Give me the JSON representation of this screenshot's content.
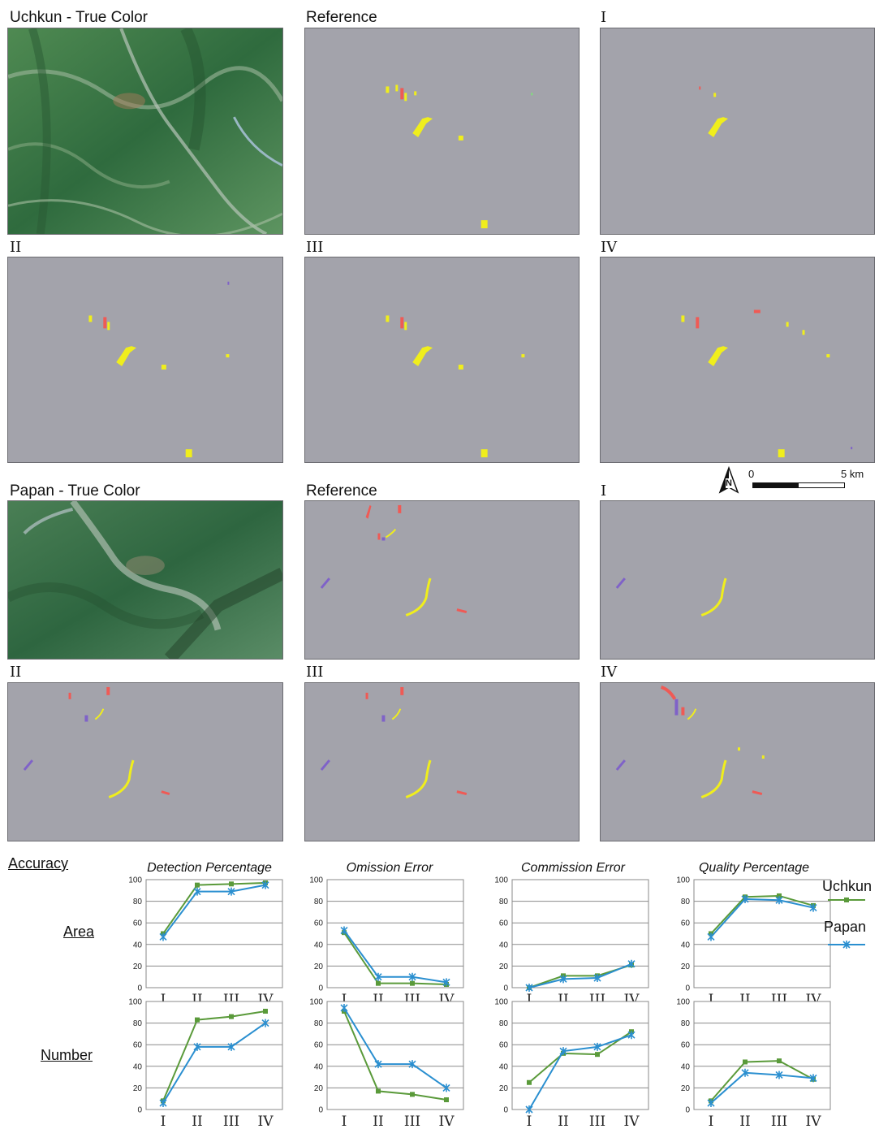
{
  "uchkun": {
    "true_color_label": "Uchkun - True Color",
    "reference_label": "Reference",
    "labels": [
      "I",
      "II",
      "III",
      "IV"
    ]
  },
  "papan": {
    "true_color_label": "Papan - True Color",
    "reference_label": "Reference",
    "labels": [
      "I",
      "II",
      "III",
      "IV"
    ]
  },
  "scalebar": {
    "zero": "0",
    "max": "5 km",
    "north": "N"
  },
  "accuracy_label": "Accuracy",
  "row_labels": [
    "Area",
    "Number"
  ],
  "colors": {
    "uchkun": "#5a9a3a",
    "papan": "#2a8fd0",
    "panel_bg": "#a3a3ab",
    "yellow": "#f0ee1c",
    "red": "#ef5a55",
    "purple": "#7f62c8"
  },
  "legend": [
    {
      "name": "Uchkun",
      "color": "#5a9a3a",
      "marker": "square"
    },
    {
      "name": "Papan",
      "color": "#2a8fd0",
      "marker": "star"
    }
  ],
  "chart_data": [
    {
      "type": "line",
      "title": "Detection Percentage",
      "row": "Area",
      "categories": [
        "I",
        "II",
        "III",
        "IV"
      ],
      "ylim": [
        0,
        100
      ],
      "yticks": [
        0,
        20,
        40,
        60,
        80,
        100
      ],
      "series": [
        {
          "name": "Uchkun",
          "values": [
            50,
            95,
            96,
            97
          ]
        },
        {
          "name": "Papan",
          "values": [
            47,
            89,
            89,
            95
          ]
        }
      ]
    },
    {
      "type": "line",
      "title": "Omission Error",
      "row": "Area",
      "categories": [
        "I",
        "II",
        "III",
        "IV"
      ],
      "ylim": [
        0,
        100
      ],
      "yticks": [
        0,
        20,
        40,
        60,
        80,
        100
      ],
      "series": [
        {
          "name": "Uchkun",
          "values": [
            51,
            4,
            4,
            3
          ]
        },
        {
          "name": "Papan",
          "values": [
            53,
            10,
            10,
            5
          ]
        }
      ]
    },
    {
      "type": "line",
      "title": "Commission Error",
      "row": "Area",
      "categories": [
        "I",
        "II",
        "III",
        "IV"
      ],
      "ylim": [
        0,
        100
      ],
      "yticks": [
        0,
        20,
        40,
        60,
        80,
        100
      ],
      "series": [
        {
          "name": "Uchkun",
          "values": [
            0,
            11,
            11,
            21
          ]
        },
        {
          "name": "Papan",
          "values": [
            0,
            8,
            9,
            22
          ]
        }
      ]
    },
    {
      "type": "line",
      "title": "Quality Percentage",
      "row": "Area",
      "categories": [
        "I",
        "II",
        "III",
        "IV"
      ],
      "ylim": [
        0,
        100
      ],
      "yticks": [
        0,
        20,
        40,
        60,
        80,
        100
      ],
      "series": [
        {
          "name": "Uchkun",
          "values": [
            50,
            84,
            85,
            76
          ]
        },
        {
          "name": "Papan",
          "values": [
            47,
            82,
            81,
            74
          ]
        }
      ]
    },
    {
      "type": "line",
      "title": "",
      "row": "Number",
      "categories": [
        "I",
        "II",
        "III",
        "IV"
      ],
      "ylim": [
        0,
        100
      ],
      "yticks": [
        0,
        20,
        40,
        60,
        80,
        100
      ],
      "series": [
        {
          "name": "Uchkun",
          "values": [
            8,
            83,
            86,
            91
          ]
        },
        {
          "name": "Papan",
          "values": [
            6,
            58,
            58,
            80
          ]
        }
      ]
    },
    {
      "type": "line",
      "title": "",
      "row": "Number",
      "categories": [
        "I",
        "II",
        "III",
        "IV"
      ],
      "ylim": [
        0,
        100
      ],
      "yticks": [
        0,
        20,
        40,
        60,
        80,
        100
      ],
      "series": [
        {
          "name": "Uchkun",
          "values": [
            91,
            17,
            14,
            9
          ]
        },
        {
          "name": "Papan",
          "values": [
            94,
            42,
            42,
            20
          ]
        }
      ]
    },
    {
      "type": "line",
      "title": "",
      "row": "Number",
      "categories": [
        "I",
        "II",
        "III",
        "IV"
      ],
      "ylim": [
        0,
        100
      ],
      "yticks": [
        0,
        20,
        40,
        60,
        80,
        100
      ],
      "series": [
        {
          "name": "Uchkun",
          "values": [
            25,
            52,
            51,
            72
          ]
        },
        {
          "name": "Papan",
          "values": [
            0,
            54,
            58,
            69
          ]
        }
      ]
    },
    {
      "type": "line",
      "title": "",
      "row": "Number",
      "categories": [
        "I",
        "II",
        "III",
        "IV"
      ],
      "ylim": [
        0,
        100
      ],
      "yticks": [
        0,
        20,
        40,
        60,
        80,
        100
      ],
      "series": [
        {
          "name": "Uchkun",
          "values": [
            8,
            44,
            45,
            28
          ]
        },
        {
          "name": "Papan",
          "values": [
            6,
            34,
            32,
            29
          ]
        }
      ]
    }
  ]
}
